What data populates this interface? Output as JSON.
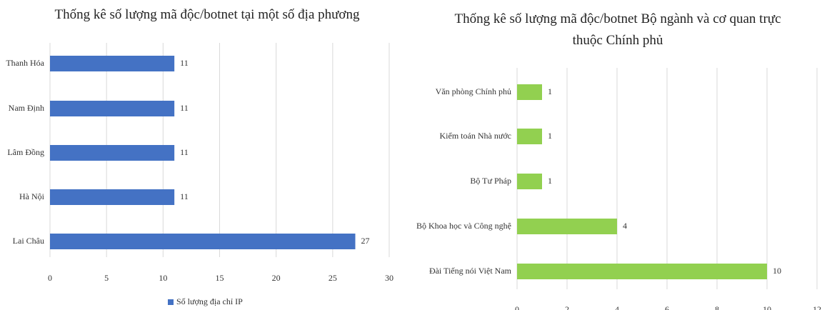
{
  "chart_data": [
    {
      "type": "barh",
      "title": "Thống kê số lượng mã độc/botnet tại một số địa phương",
      "categories": [
        "Thanh Hóa",
        "Nam Định",
        "Lâm Đồng",
        "Hà Nội",
        "Lai Châu"
      ],
      "series": [
        {
          "name": "Số lượng địa chỉ IP",
          "color": "#4472c4",
          "values": [
            11,
            11,
            11,
            11,
            27
          ]
        }
      ],
      "xlim": [
        0,
        30
      ],
      "xticks": [
        0,
        5,
        10,
        15,
        20,
        25,
        30
      ],
      "grid": true,
      "legend": "bottom"
    },
    {
      "type": "barh",
      "title": "Thống kê số lượng mã độc/botnet Bộ ngành và cơ quan trực thuộc Chính phủ",
      "categories": [
        "Văn phòng Chính phủ",
        "Kiểm toán Nhà nước",
        "Bộ Tư Pháp",
        "Bộ Khoa học và Công nghệ",
        "Đài Tiếng nói Việt Nam"
      ],
      "values": [
        1,
        1,
        1,
        4,
        10
      ],
      "color": "#92d050",
      "xlim": [
        0,
        12
      ],
      "xticks": [
        0,
        2,
        4,
        6,
        8,
        10,
        12
      ],
      "grid": true
    }
  ]
}
